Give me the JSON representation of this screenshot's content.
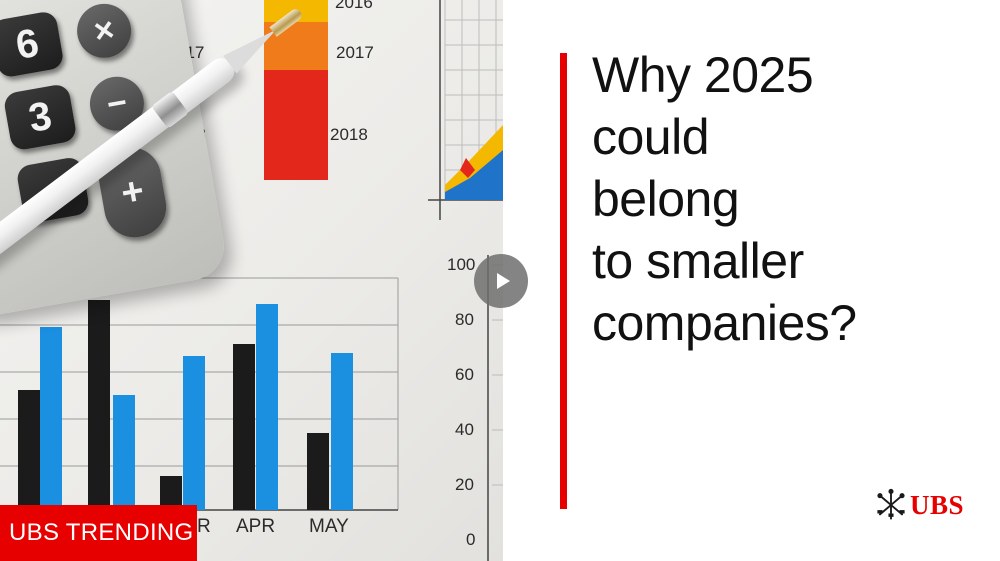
{
  "video": {
    "headline_lines": [
      "Why 2025",
      "could",
      "belong",
      "to smaller",
      "companies?"
    ],
    "badge_label": "UBS TRENDING",
    "logo_text": "UBS",
    "play_button_icon": "play-icon",
    "colors": {
      "brand_red": "#e60000",
      "headline": "#111111"
    }
  },
  "photo": {
    "top_year_labels": [
      "2016",
      "2017",
      "2018",
      "017",
      "2018"
    ],
    "bottom_chart_axis_labels": [
      "100",
      "80",
      "60",
      "40",
      "20",
      "0"
    ],
    "bottom_chart_month_labels": [
      "R",
      "APR",
      "MAY"
    ],
    "calculator_keys": [
      "6",
      "×",
      "3",
      "−",
      "•",
      "+"
    ]
  }
}
